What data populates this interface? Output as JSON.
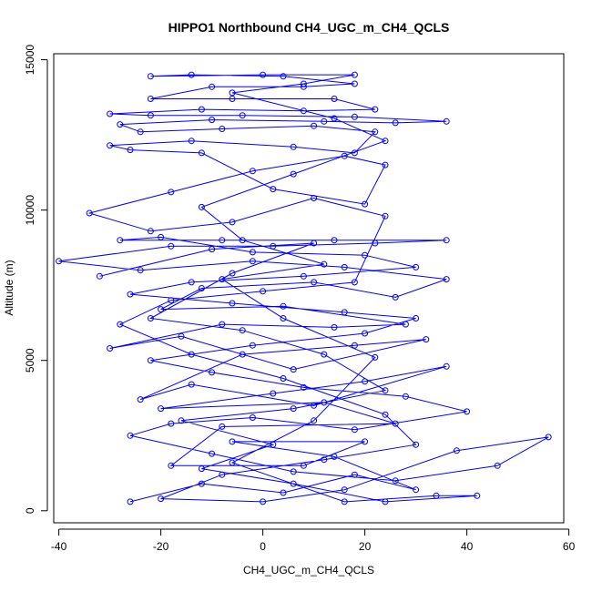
{
  "chart_data": {
    "type": "scatter",
    "title": "HIPPO1 Northbound CH4_UGC_m_CH4_QCLS",
    "xlabel": "CH4_UGC_m_CH4_QCLS",
    "ylabel": "Altitude (m)",
    "xlim": [
      -41,
      59
    ],
    "ylim": [
      -400,
      15200
    ],
    "xticks": [
      -40,
      -20,
      0,
      20,
      40,
      60
    ],
    "yticks": [
      0,
      5000,
      10000,
      15000
    ],
    "grid": false,
    "legend": "none",
    "series": [
      {
        "color": "#0000ff",
        "mode": "lines+points",
        "points": [
          [
            -26,
            300
          ],
          [
            -12,
            900
          ],
          [
            4,
            600
          ],
          [
            18,
            1200
          ],
          [
            30,
            700
          ],
          [
            14,
            1800
          ],
          [
            -6,
            2300
          ],
          [
            20,
            2300
          ],
          [
            8,
            1500
          ],
          [
            -18,
            1500
          ],
          [
            -8,
            2800
          ],
          [
            26,
            2900
          ],
          [
            12,
            3600
          ],
          [
            -20,
            3400
          ],
          [
            2,
            3900
          ],
          [
            20,
            4300
          ],
          [
            36,
            4800
          ],
          [
            10,
            3500
          ],
          [
            -14,
            4200
          ],
          [
            -24,
            3700
          ],
          [
            -4,
            5200
          ],
          [
            18,
            5500
          ],
          [
            32,
            5700
          ],
          [
            6,
            4700
          ],
          [
            -16,
            5800
          ],
          [
            -30,
            5400
          ],
          [
            -8,
            6200
          ],
          [
            14,
            6100
          ],
          [
            28,
            6200
          ],
          [
            4,
            6800
          ],
          [
            -20,
            6700
          ],
          [
            -12,
            7400
          ],
          [
            10,
            7600
          ],
          [
            26,
            7100
          ],
          [
            36,
            7700
          ],
          [
            16,
            8100
          ],
          [
            -2,
            8300
          ],
          [
            -24,
            8000
          ],
          [
            -40,
            8300
          ],
          [
            -18,
            8800
          ],
          [
            2,
            8800
          ],
          [
            22,
            8900
          ],
          [
            36,
            9000
          ],
          [
            14,
            9000
          ],
          [
            -8,
            9000
          ],
          [
            -28,
            9000
          ],
          [
            -20,
            9100
          ],
          [
            -2,
            8600
          ],
          [
            20,
            8500
          ],
          [
            30,
            8100
          ],
          [
            8,
            7800
          ],
          [
            -14,
            7600
          ],
          [
            -26,
            7200
          ],
          [
            -6,
            6900
          ],
          [
            16,
            6600
          ],
          [
            30,
            6400
          ],
          [
            20,
            5900
          ],
          [
            -2,
            5500
          ],
          [
            -22,
            5000
          ],
          [
            -10,
            4600
          ],
          [
            8,
            4100
          ],
          [
            28,
            3800
          ],
          [
            40,
            3300
          ],
          [
            18,
            2700
          ],
          [
            -2,
            3100
          ],
          [
            -18,
            2900
          ],
          [
            -26,
            2500
          ],
          [
            -10,
            1900
          ],
          [
            6,
            1300
          ],
          [
            26,
            1000
          ],
          [
            46,
            1500
          ],
          [
            56,
            2450
          ],
          [
            38,
            2000
          ],
          [
            16,
            700
          ],
          [
            0,
            300
          ],
          [
            -20,
            400
          ],
          [
            -8,
            1200
          ],
          [
            12,
            1700
          ],
          [
            30,
            2200
          ],
          [
            24,
            3200
          ],
          [
            4,
            4400
          ],
          [
            -14,
            5200
          ],
          [
            -28,
            6200
          ],
          [
            -18,
            7000
          ],
          [
            0,
            7300
          ],
          [
            18,
            7600
          ],
          [
            24,
            9800
          ],
          [
            10,
            10400
          ],
          [
            -6,
            9600
          ],
          [
            -22,
            9300
          ],
          [
            -34,
            9900
          ],
          [
            -18,
            10600
          ],
          [
            -2,
            11300
          ],
          [
            16,
            11800
          ],
          [
            24,
            11500
          ],
          [
            20,
            10200
          ],
          [
            2,
            10700
          ],
          [
            -12,
            11900
          ],
          [
            -26,
            12000
          ],
          [
            -30,
            12150
          ],
          [
            -14,
            12300
          ],
          [
            6,
            12100
          ],
          [
            18,
            11900
          ],
          [
            22,
            12600
          ],
          [
            10,
            12800
          ],
          [
            -8,
            12700
          ],
          [
            -24,
            12600
          ],
          [
            -28,
            12850
          ],
          [
            -10,
            13000
          ],
          [
            12,
            12950
          ],
          [
            26,
            12900
          ],
          [
            36,
            12950
          ],
          [
            18,
            13100
          ],
          [
            -4,
            13150
          ],
          [
            -22,
            13150
          ],
          [
            -30,
            13200
          ],
          [
            -12,
            13350
          ],
          [
            8,
            13300
          ],
          [
            22,
            13350
          ],
          [
            14,
            13700
          ],
          [
            -6,
            13700
          ],
          [
            -22,
            13700
          ],
          [
            -10,
            14100
          ],
          [
            8,
            14100
          ],
          [
            18,
            14200
          ],
          [
            4,
            14450
          ],
          [
            -14,
            14500
          ],
          [
            -22,
            14450
          ],
          [
            0,
            14500
          ],
          [
            18,
            14500
          ],
          [
            8,
            14200
          ],
          [
            -6,
            13900
          ],
          [
            14,
            13050
          ],
          [
            24,
            12300
          ],
          [
            6,
            11200
          ],
          [
            -12,
            10100
          ],
          [
            -4,
            9000
          ],
          [
            12,
            8200
          ],
          [
            -8,
            7700
          ],
          [
            4,
            6400
          ],
          [
            22,
            5100
          ],
          [
            10,
            3000
          ],
          [
            -6,
            1600
          ],
          [
            16,
            300
          ],
          [
            34,
            500
          ],
          [
            42,
            500
          ],
          [
            24,
            300
          ],
          [
            6,
            900
          ],
          [
            -12,
            1400
          ],
          [
            2,
            2200
          ],
          [
            -16,
            3000
          ],
          [
            6,
            3400
          ],
          [
            24,
            4000
          ],
          [
            12,
            5200
          ],
          [
            -4,
            6000
          ],
          [
            -22,
            6400
          ],
          [
            -6,
            7900
          ],
          [
            10,
            8900
          ],
          [
            -10,
            8700
          ],
          [
            -32,
            7800
          ]
        ]
      }
    ]
  }
}
